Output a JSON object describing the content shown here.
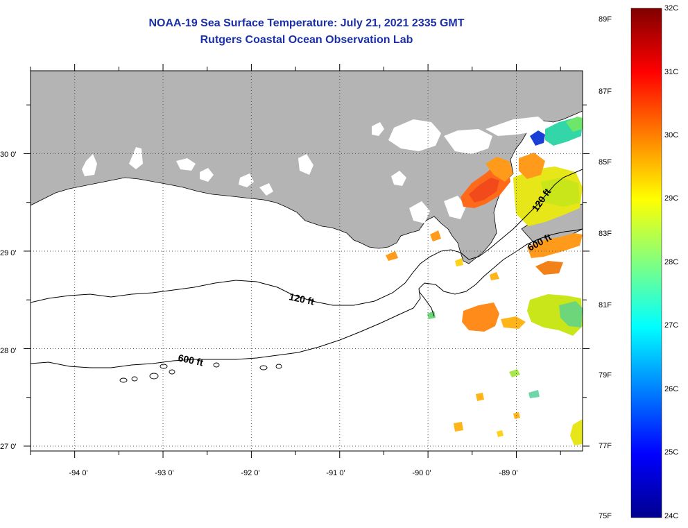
{
  "title": {
    "line1": "NOAA-19 Sea Surface Temperature:  July 21, 2021 2335 GMT",
    "line2": "Rutgers Coastal Ocean Observation Lab"
  },
  "map": {
    "lon_range": [
      -94.5,
      -88.25
    ],
    "lat_range": [
      26.95,
      30.85
    ],
    "lat_labels": [
      "30 0'",
      "29 0'",
      "28 0'",
      "27 0'"
    ],
    "lat_values": [
      30,
      29,
      28,
      27
    ],
    "lon_labels": [
      "-94 0'",
      "-93 0'",
      "-92 0'",
      "-91 0'",
      "-90 0'",
      "-89 0'"
    ],
    "lon_values": [
      -94,
      -93,
      -92,
      -91,
      -90,
      -89
    ],
    "contour_labels": [
      {
        "text": "120 ft",
        "rotation_deg": 12
      },
      {
        "text": "600 ft",
        "rotation_deg": 12
      },
      {
        "text": "120 ft",
        "rotation_deg": -55
      },
      {
        "text": "600 ft",
        "rotation_deg": -28
      }
    ],
    "colors": {
      "land": "#b4b4b4",
      "no_data": "#ffffff",
      "contour": "#000000"
    }
  },
  "colorbar": {
    "fahrenheit_labels": [
      "89F",
      "87F",
      "85F",
      "83F",
      "81F",
      "79F",
      "77F",
      "75F"
    ],
    "celsius_labels": [
      "32C",
      "31C",
      "30C",
      "29C",
      "28C",
      "27C",
      "26C",
      "25C",
      "24C"
    ],
    "range_c": [
      24,
      32
    ],
    "colormap": [
      "#00008f",
      "#0000ff",
      "#0080ff",
      "#00ffff",
      "#80ff80",
      "#ffff00",
      "#ff8000",
      "#ff0000",
      "#800000"
    ]
  }
}
